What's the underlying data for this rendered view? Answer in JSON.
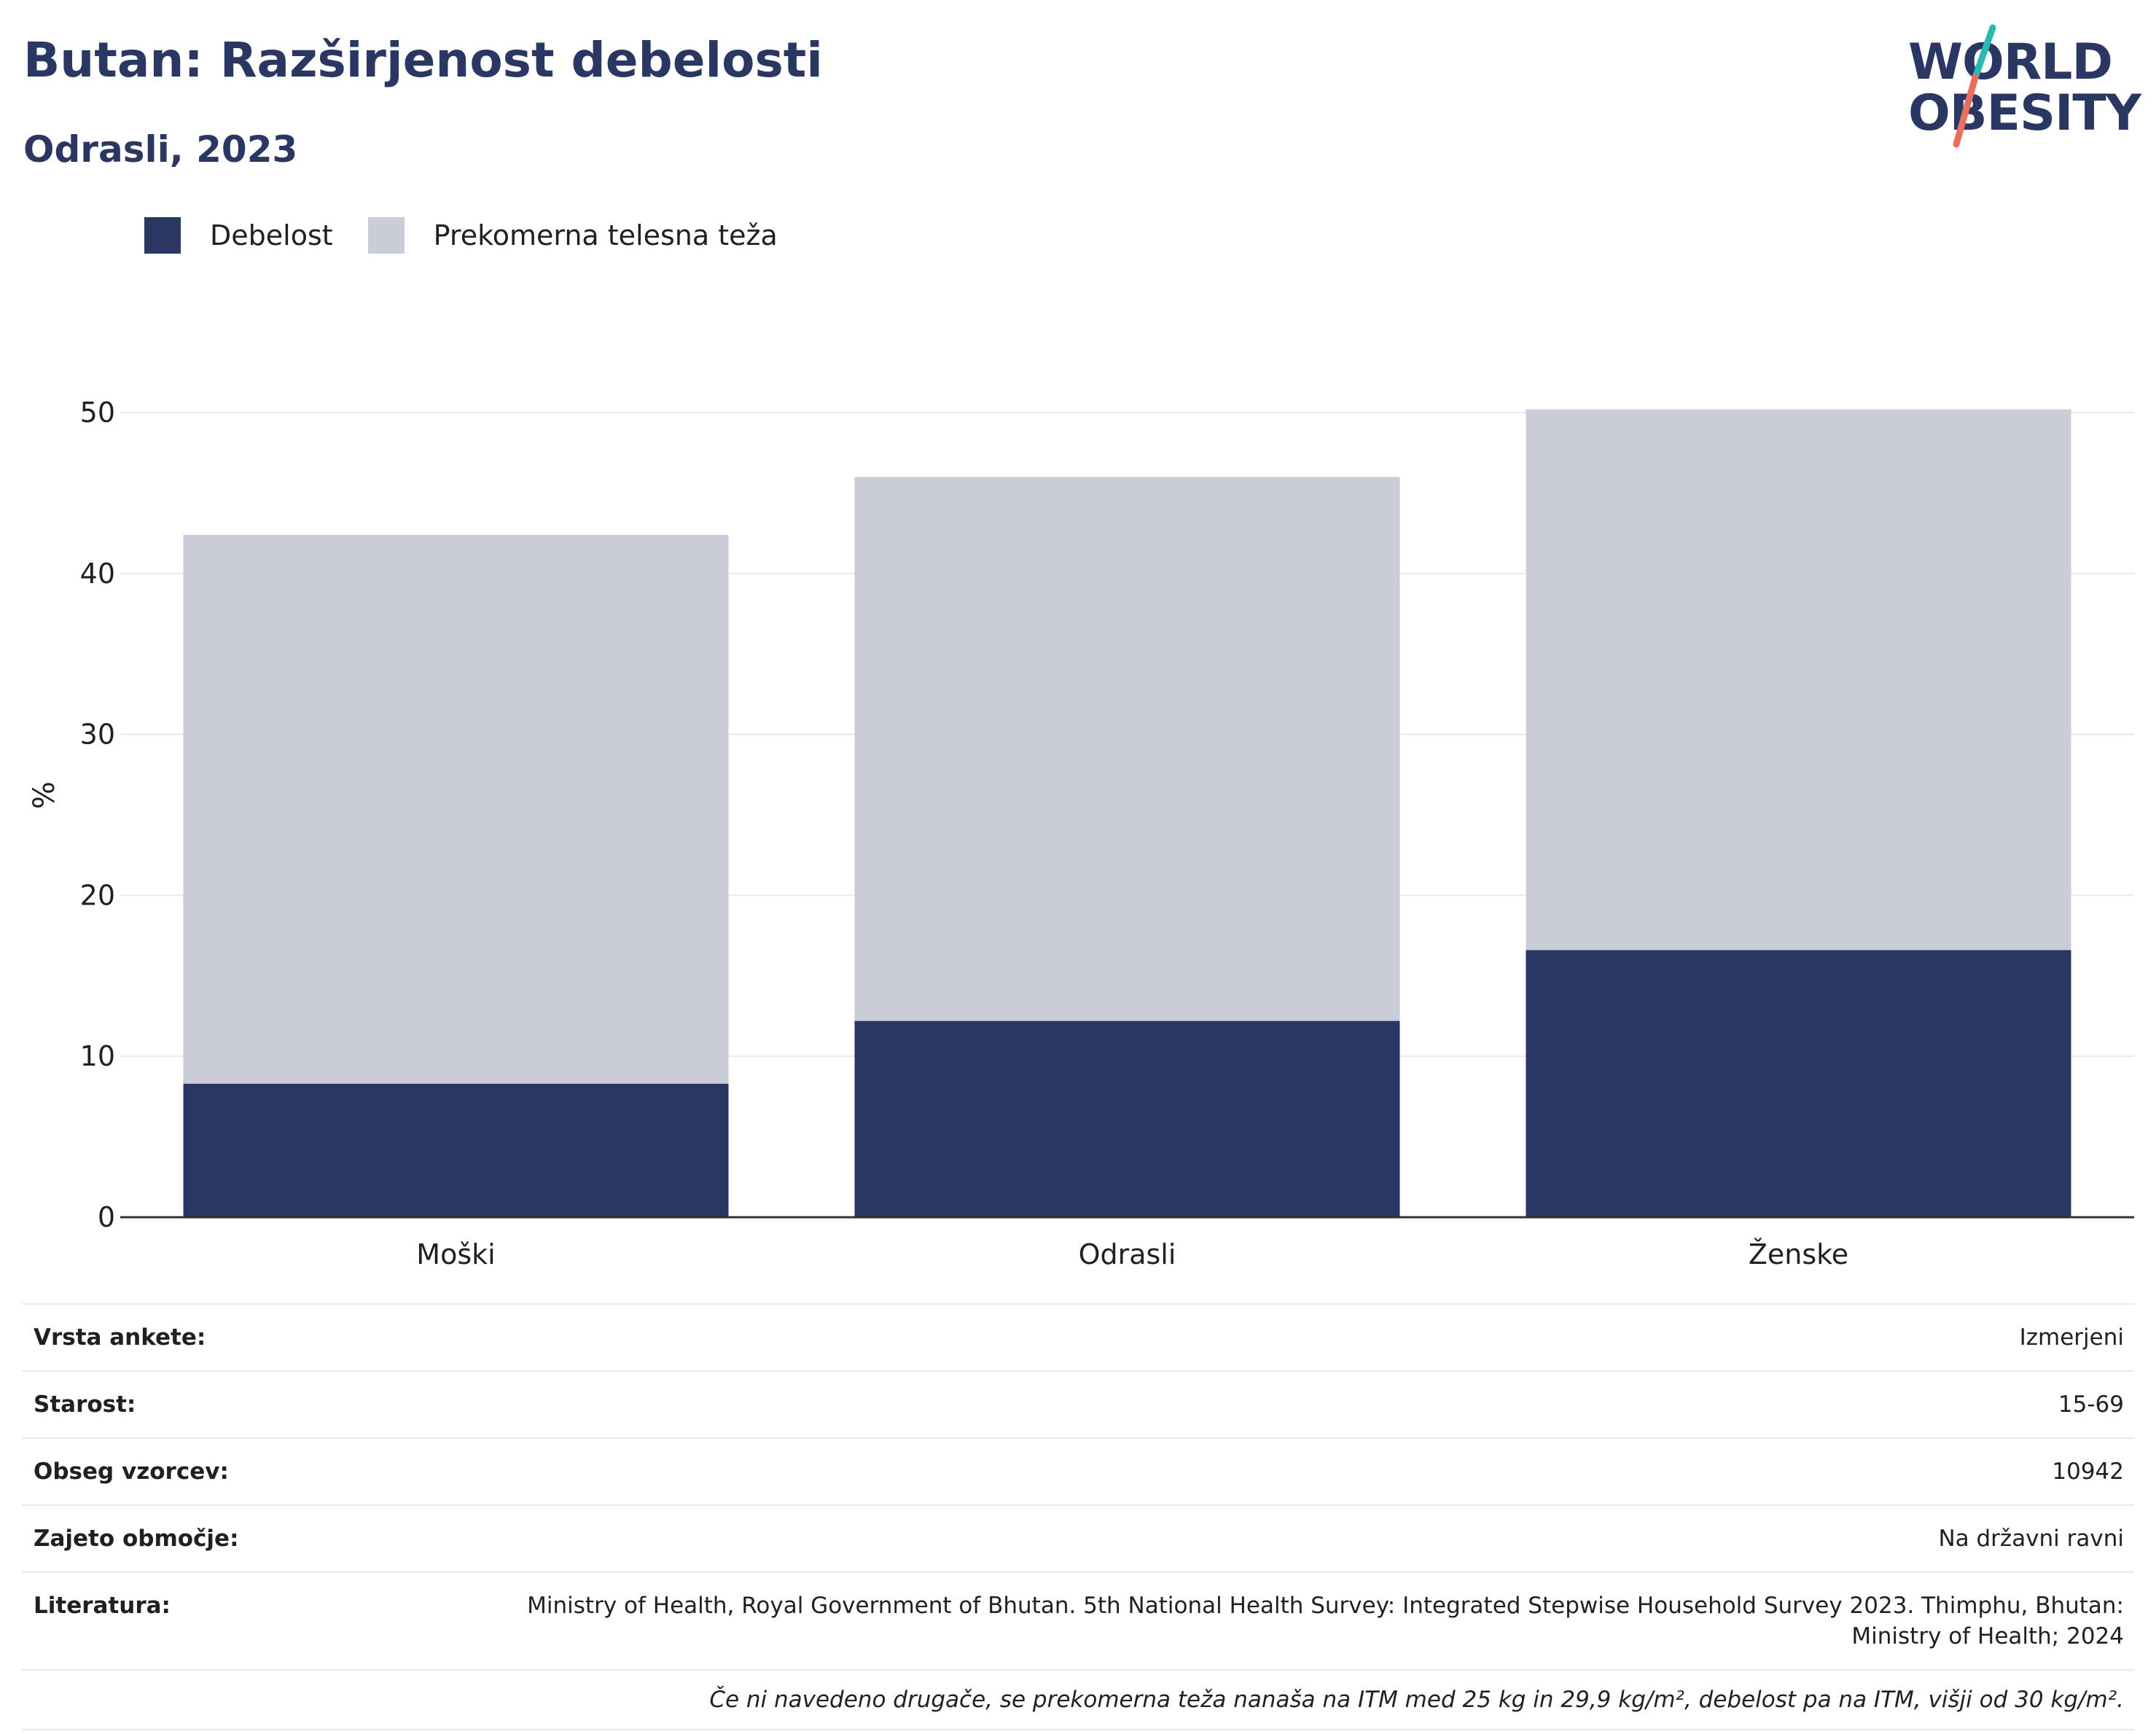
{
  "header": {
    "title": "Butan: Razširjenost debelosti",
    "subtitle": "Odrasli, 2023"
  },
  "logo": {
    "line1": "WORLD",
    "line2": "OBESITY",
    "accent_teal": "#2bb8b1",
    "accent_coral": "#e8705c"
  },
  "legend": [
    {
      "label": "Debelost",
      "color": "#2a3762"
    },
    {
      "label": "Prekomerna telesna teža",
      "color": "#caccd8"
    }
  ],
  "chart_data": {
    "type": "bar",
    "stacked": true,
    "categories": [
      "Moški",
      "Odrasli",
      "Ženske"
    ],
    "series": [
      {
        "name": "Debelost",
        "color": "#2a3762",
        "values": [
          8.3,
          12.2,
          16.6
        ]
      },
      {
        "name": "Prekomerna telesna teža",
        "color": "#caccd8",
        "values": [
          34.1,
          33.8,
          33.6
        ]
      }
    ],
    "ylabel": "%",
    "ylim": [
      0,
      50
    ],
    "yticks": [
      0,
      10,
      20,
      30,
      40,
      50
    ],
    "grid": true,
    "legend_position": "top-left"
  },
  "info": {
    "rows": [
      {
        "key": "Vrsta ankete:",
        "value": "Izmerjeni"
      },
      {
        "key": "Starost:",
        "value": "15-69"
      },
      {
        "key": "Obseg vzorcev:",
        "value": "10942"
      },
      {
        "key": "Zajeto območje:",
        "value": "Na državni ravni"
      },
      {
        "key": "Literatura:",
        "value": "Ministry of Health, Royal Government of Bhutan. 5th National Health Survey: Integrated Stepwise Household Survey 2023. Thimphu, Bhutan: Ministry of Health; 2024"
      }
    ],
    "note": "Če ni navedeno drugače, se prekomerna teža nanaša na ITM med 25 kg in 29,9 kg/m², debelost pa na ITM, višji od 30 kg/m²."
  }
}
